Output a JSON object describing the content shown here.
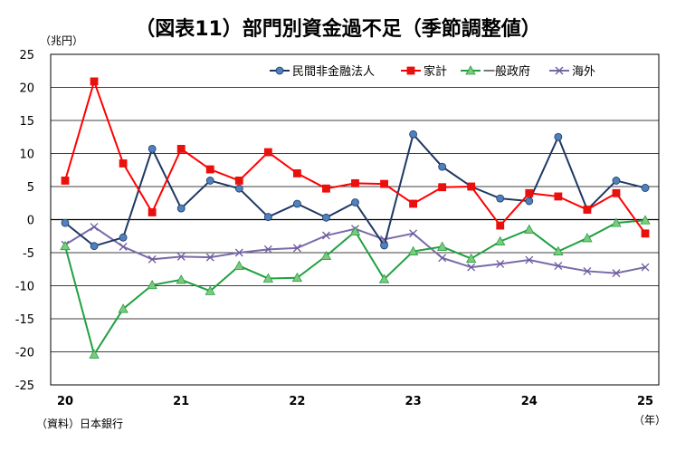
{
  "title": "（図表11）部門別資金過不足（季節調整値）",
  "unit_label": "（兆円）",
  "source_label": "（資料）日本銀行",
  "x_unit_label": "（年）",
  "chart_data": {
    "type": "line",
    "ylim": [
      -25,
      25
    ],
    "y_ticks": [
      25,
      20,
      15,
      10,
      5,
      0,
      -5,
      -10,
      -15,
      -20,
      -25
    ],
    "x_count": 21,
    "x_tick_labels": [
      {
        "index": 0,
        "label": "20"
      },
      {
        "index": 4,
        "label": "21"
      },
      {
        "index": 8,
        "label": "22"
      },
      {
        "index": 12,
        "label": "23"
      },
      {
        "index": 16,
        "label": "24"
      },
      {
        "index": 20,
        "label": "25"
      }
    ],
    "grid": true,
    "legend_position": "top-right",
    "series": [
      {
        "name": "民間非金融法人",
        "color": "#1f3864",
        "marker": "circle",
        "marker_color": "#4f81bd",
        "values": [
          -0.5,
          -4.0,
          -2.7,
          10.7,
          1.7,
          5.9,
          4.7,
          0.4,
          2.4,
          0.3,
          2.6,
          -3.9,
          12.9,
          8.0,
          5.0,
          3.2,
          2.8,
          12.5,
          1.5,
          5.9,
          4.8
        ]
      },
      {
        "name": "家計",
        "color": "#ff0000",
        "marker": "square",
        "marker_color": "#e3140f",
        "values": [
          5.9,
          20.9,
          8.5,
          1.1,
          10.7,
          7.6,
          5.9,
          10.2,
          7.0,
          4.7,
          5.5,
          5.4,
          2.4,
          4.9,
          5.0,
          -0.9,
          4.0,
          3.5,
          1.5,
          4.0,
          -2.1
        ]
      },
      {
        "name": "一般政府",
        "color": "#20a040",
        "marker": "triangle",
        "marker_color": "#7dc97d",
        "values": [
          -4.0,
          -20.4,
          -13.5,
          -9.9,
          -9.1,
          -10.8,
          -7.0,
          -8.9,
          -8.8,
          -5.5,
          -1.8,
          -9.0,
          -4.8,
          -4.1,
          -5.9,
          -3.3,
          -1.5,
          -4.8,
          -2.8,
          -0.5,
          -0.1
        ]
      },
      {
        "name": "海外",
        "color": "#7a6aa8",
        "marker": "x",
        "marker_color": "#6b5a9e",
        "values": [
          -3.8,
          -1.1,
          -4.1,
          -6.0,
          -5.6,
          -5.7,
          -5.0,
          -4.5,
          -4.3,
          -2.4,
          -1.4,
          -3.0,
          -2.1,
          -5.8,
          -7.2,
          -6.7,
          -6.1,
          -7.0,
          -7.8,
          -8.1,
          -7.2
        ]
      }
    ]
  }
}
